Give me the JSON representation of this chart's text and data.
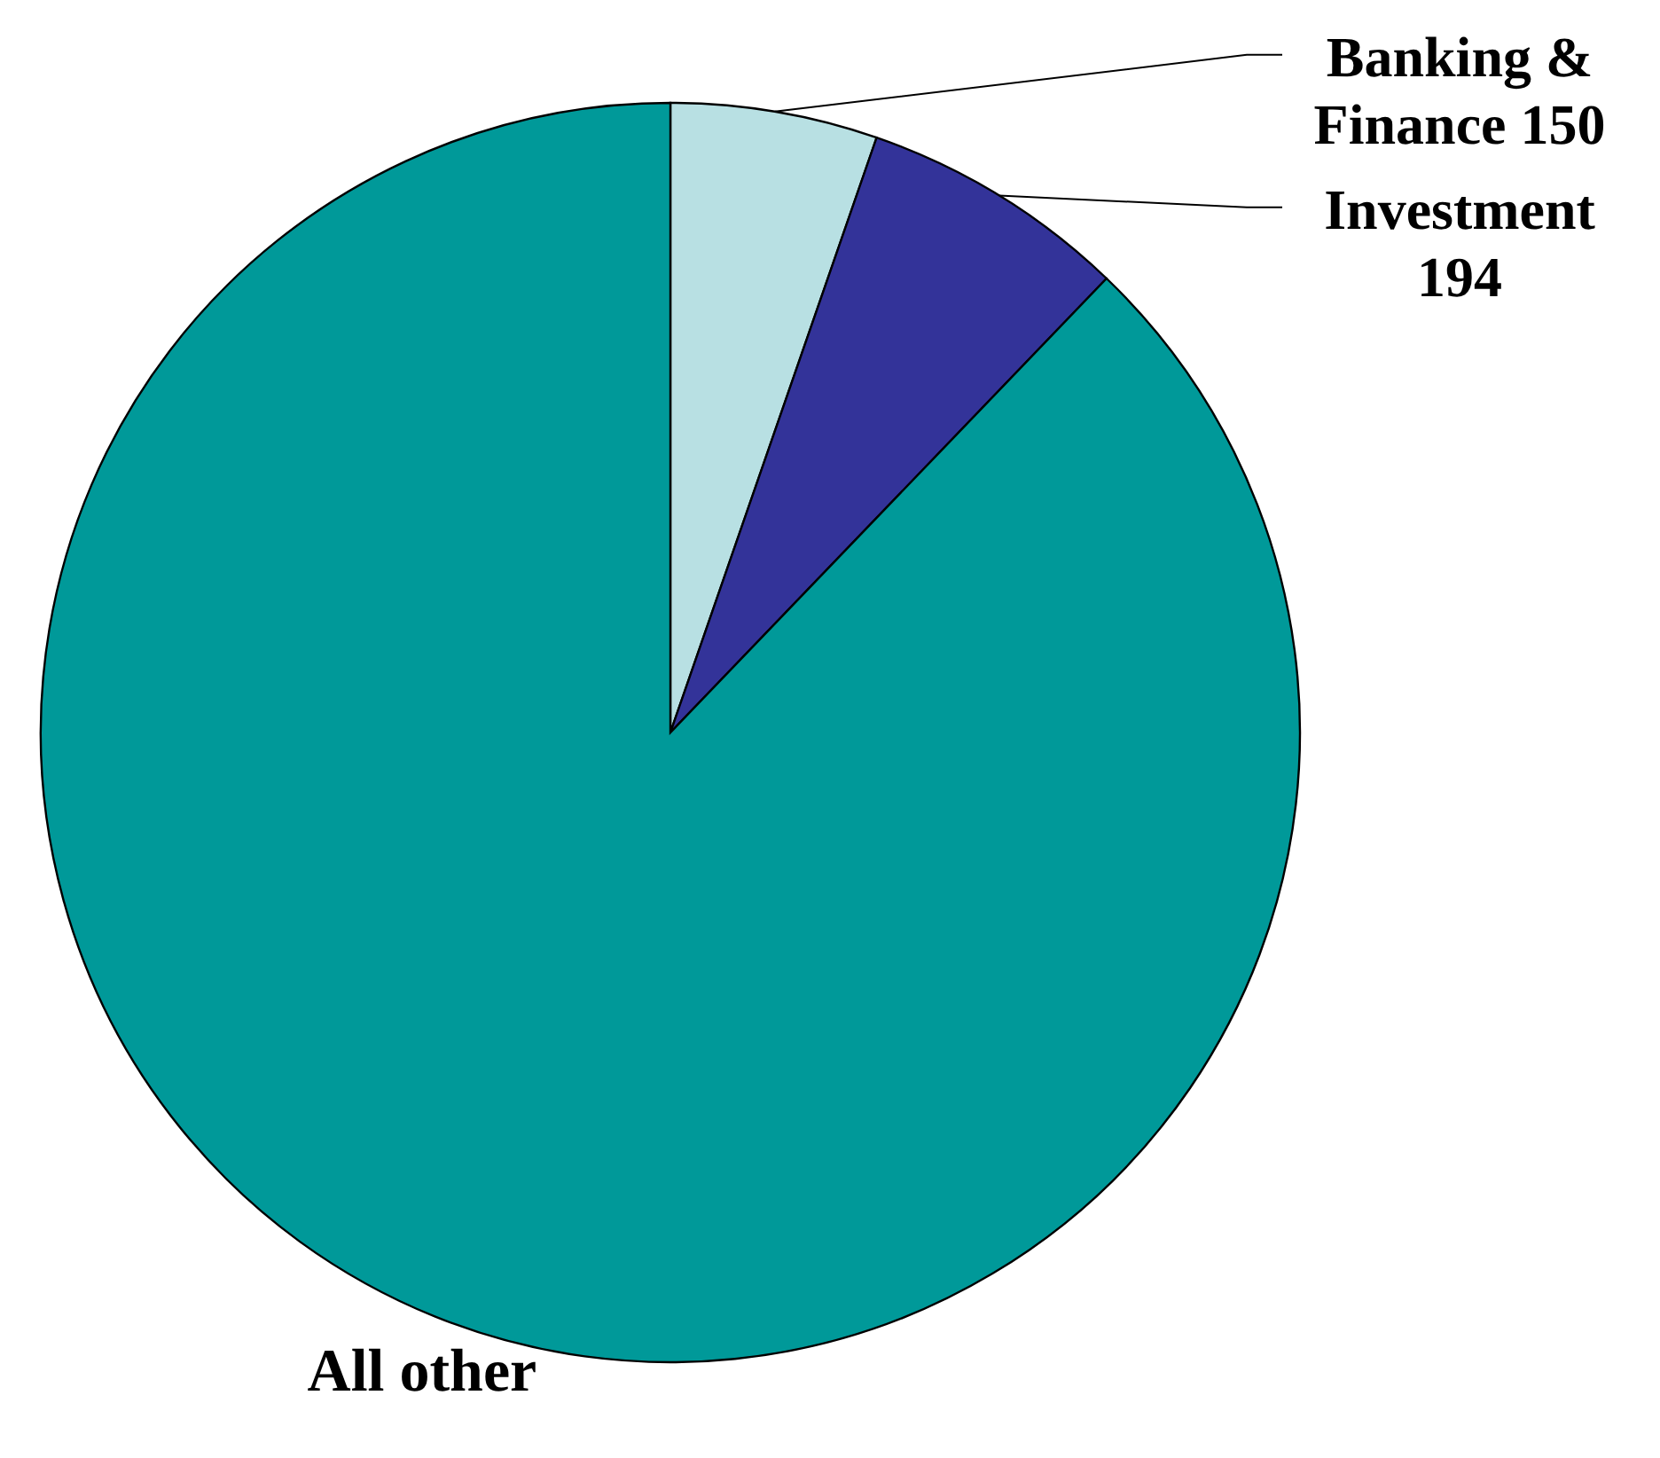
{
  "chart_data": {
    "type": "pie",
    "categories": [
      "Banking & Finance",
      "Investment",
      "All other"
    ],
    "values": [
      150,
      194,
      2480
    ],
    "colors": [
      "#b8e0e3",
      "#333399",
      "#009999"
    ],
    "value_labels": [
      "150",
      "194",
      null
    ]
  }
}
